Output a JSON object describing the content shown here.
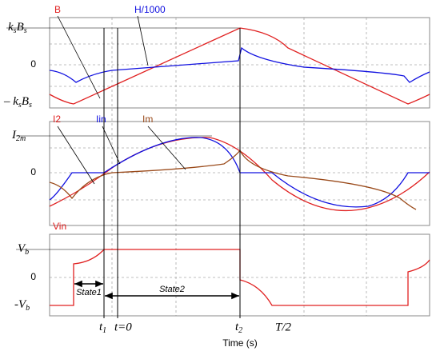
{
  "panels": [
    {
      "y_labels": [
        "ksBs",
        "0",
        "-ksBs"
      ],
      "curves": [
        "B",
        "H/1000"
      ]
    },
    {
      "y_labels": [
        "I2m",
        "0"
      ],
      "curves": [
        "I2",
        "Iin",
        "Im"
      ]
    },
    {
      "y_labels": [
        "Vb",
        "0",
        "-Vb"
      ],
      "curves": [
        "Vin"
      ],
      "states": [
        "State1",
        "State2"
      ]
    }
  ],
  "x_markers": [
    "t1",
    "t=0",
    "t2",
    "T/2"
  ],
  "x_label": "Time (s)"
}
